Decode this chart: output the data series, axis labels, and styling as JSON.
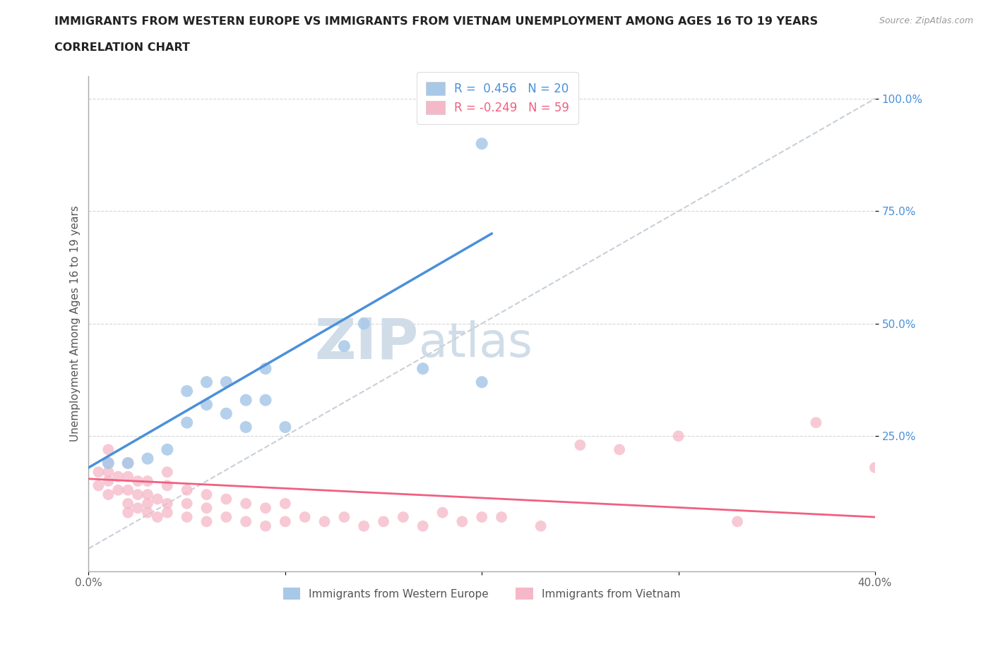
{
  "title_line1": "IMMIGRANTS FROM WESTERN EUROPE VS IMMIGRANTS FROM VIETNAM UNEMPLOYMENT AMONG AGES 16 TO 19 YEARS",
  "title_line2": "CORRELATION CHART",
  "source_text": "Source: ZipAtlas.com",
  "ylabel": "Unemployment Among Ages 16 to 19 years",
  "xlim": [
    0.0,
    0.4
  ],
  "ylim": [
    -0.05,
    1.05
  ],
  "blue_R": 0.456,
  "blue_N": 20,
  "pink_R": -0.249,
  "pink_N": 59,
  "blue_color": "#a8c8e8",
  "pink_color": "#f5b8c8",
  "blue_line_color": "#4a90d9",
  "pink_line_color": "#f06080",
  "gray_line_color": "#c8d0d8",
  "watermark_color": "#d0dde8",
  "blue_scatter_x": [
    0.01,
    0.02,
    0.03,
    0.04,
    0.05,
    0.05,
    0.06,
    0.06,
    0.07,
    0.07,
    0.08,
    0.08,
    0.09,
    0.09,
    0.1,
    0.13,
    0.14,
    0.17,
    0.2,
    0.2
  ],
  "blue_scatter_y": [
    0.19,
    0.19,
    0.2,
    0.22,
    0.28,
    0.35,
    0.32,
    0.37,
    0.3,
    0.37,
    0.27,
    0.33,
    0.33,
    0.4,
    0.27,
    0.45,
    0.5,
    0.4,
    0.37,
    0.9
  ],
  "pink_scatter_x": [
    0.005,
    0.005,
    0.01,
    0.01,
    0.01,
    0.01,
    0.01,
    0.015,
    0.015,
    0.02,
    0.02,
    0.02,
    0.02,
    0.02,
    0.025,
    0.025,
    0.025,
    0.03,
    0.03,
    0.03,
    0.03,
    0.035,
    0.035,
    0.04,
    0.04,
    0.04,
    0.04,
    0.05,
    0.05,
    0.05,
    0.06,
    0.06,
    0.06,
    0.07,
    0.07,
    0.08,
    0.08,
    0.09,
    0.09,
    0.1,
    0.1,
    0.11,
    0.12,
    0.13,
    0.14,
    0.15,
    0.16,
    0.17,
    0.18,
    0.19,
    0.2,
    0.21,
    0.23,
    0.25,
    0.27,
    0.3,
    0.33,
    0.37,
    0.4
  ],
  "pink_scatter_y": [
    0.14,
    0.17,
    0.12,
    0.15,
    0.17,
    0.19,
    0.22,
    0.13,
    0.16,
    0.08,
    0.1,
    0.13,
    0.16,
    0.19,
    0.09,
    0.12,
    0.15,
    0.08,
    0.1,
    0.12,
    0.15,
    0.07,
    0.11,
    0.08,
    0.1,
    0.14,
    0.17,
    0.07,
    0.1,
    0.13,
    0.06,
    0.09,
    0.12,
    0.07,
    0.11,
    0.06,
    0.1,
    0.05,
    0.09,
    0.06,
    0.1,
    0.07,
    0.06,
    0.07,
    0.05,
    0.06,
    0.07,
    0.05,
    0.08,
    0.06,
    0.07,
    0.07,
    0.05,
    0.23,
    0.22,
    0.25,
    0.06,
    0.28,
    0.18
  ],
  "blue_line_x0": 0.0,
  "blue_line_y0": 0.18,
  "blue_line_x1": 0.205,
  "blue_line_y1": 0.7,
  "pink_line_x0": 0.0,
  "pink_line_y0": 0.155,
  "pink_line_x1": 0.4,
  "pink_line_y1": 0.07,
  "gray_line_x0": 0.0,
  "gray_line_y0": 0.0,
  "gray_line_x1": 0.4,
  "gray_line_y1": 1.0
}
